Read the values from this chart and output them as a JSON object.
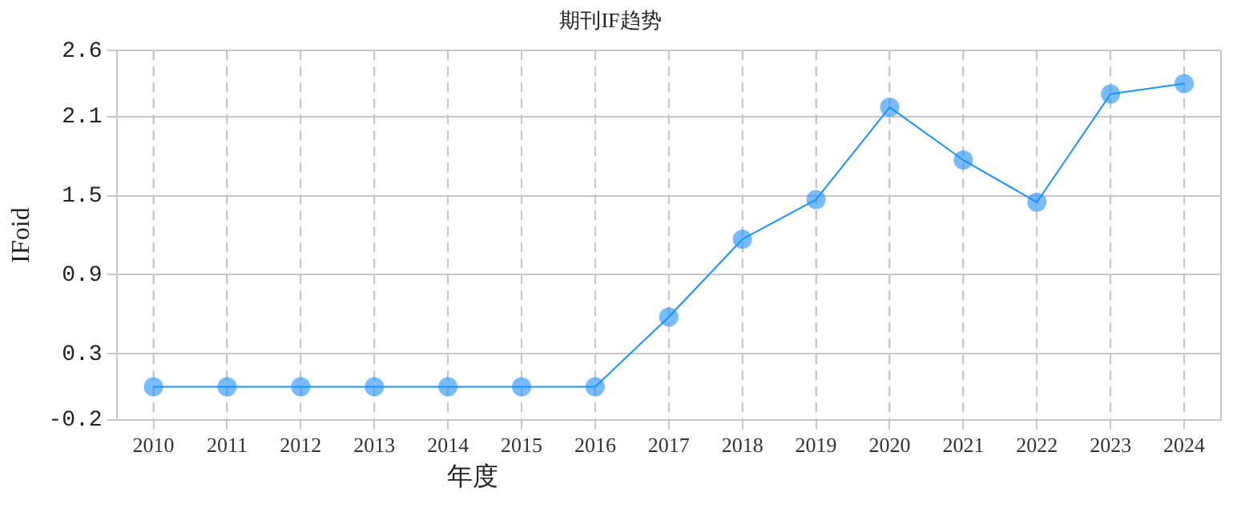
{
  "chart_data": {
    "type": "line",
    "title": "期刊IF趋势",
    "xlabel": "年度",
    "ylabel": "IFoid",
    "categories": [
      "2010",
      "2011",
      "2012",
      "2013",
      "2014",
      "2015",
      "2016",
      "2017",
      "2018",
      "2019",
      "2020",
      "2021",
      "2022",
      "2023",
      "2024"
    ],
    "series": [
      {
        "color": "#1e90ff",
        "values": [
          0.05,
          0.05,
          0.05,
          0.05,
          0.05,
          0.05,
          0.05,
          0.58,
          1.17,
          1.47,
          2.17,
          1.77,
          1.45,
          2.27,
          2.35
        ]
      }
    ],
    "ylim": [
      -0.2,
      2.6
    ],
    "yticks": [
      -0.2,
      0.3,
      0.9,
      1.5,
      2.1,
      2.6
    ],
    "grid": true,
    "legend": false,
    "marker": "circle",
    "line_style": "solid"
  }
}
